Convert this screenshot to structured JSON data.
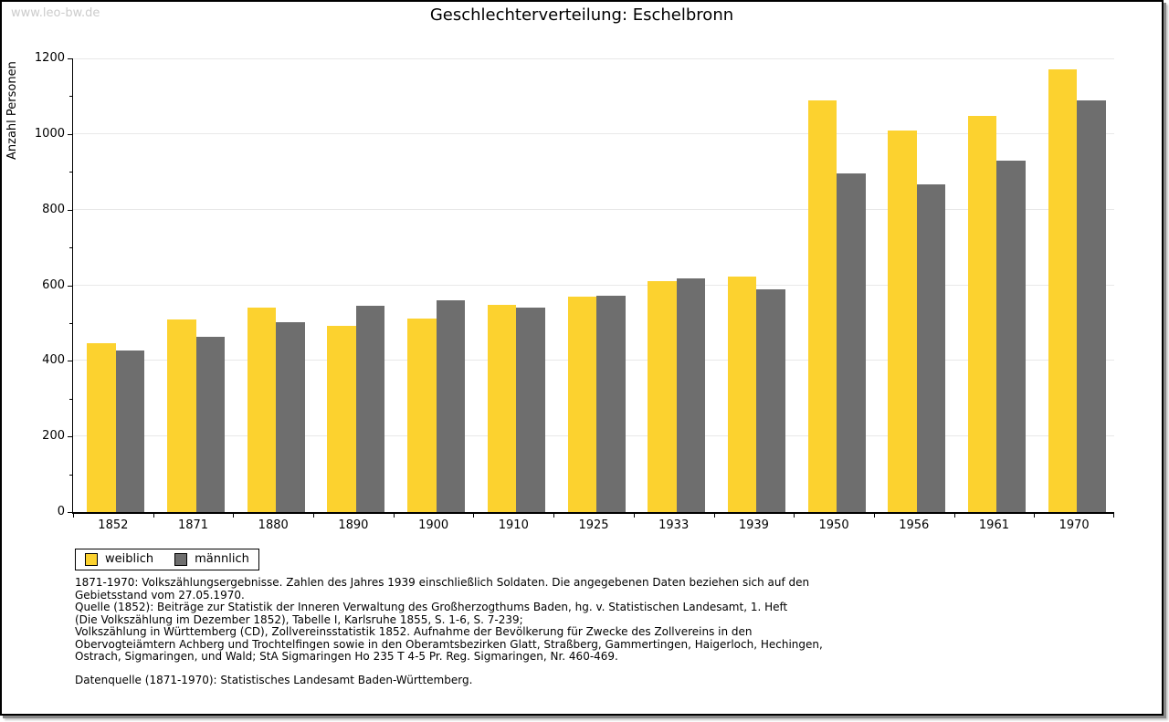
{
  "header": {
    "watermark": "www.leo-bw.de",
    "title": "Geschlechterverteilung: Eschelbronn"
  },
  "chart_data": {
    "type": "bar",
    "title": "Geschlechterverteilung: Eschelbronn",
    "xlabel": "",
    "ylabel": "Anzahl Personen",
    "categories": [
      "1852",
      "1871",
      "1880",
      "1890",
      "1900",
      "1910",
      "1925",
      "1933",
      "1939",
      "1950",
      "1956",
      "1961",
      "1970"
    ],
    "series": [
      {
        "name": "weiblich",
        "color": "#FCD22F",
        "values": [
          447,
          509,
          541,
          492,
          511,
          549,
          570,
          610,
          622,
          1089,
          1010,
          1049,
          1170
        ]
      },
      {
        "name": "männlich",
        "color": "#6E6E6E",
        "values": [
          428,
          463,
          502,
          546,
          561,
          541,
          572,
          617,
          590,
          895,
          867,
          930,
          1090
        ]
      }
    ],
    "ylim": [
      0,
      1200
    ],
    "ytick_major": 200,
    "ytick_minor": 100,
    "grid": true,
    "legend_position": "bottom-left",
    "colors": {
      "axis": "#000000",
      "grid": "#E8E8E8",
      "background": "#FFFFFF",
      "frame": "#000000",
      "watermark": "#CCCCCC",
      "text": "#000000"
    }
  },
  "footnotes": {
    "lines": [
      "1871-1970: Volkszählungsergebnisse. Zahlen des Jahres 1939 einschließlich Soldaten. Die angegebenen Daten beziehen sich auf den",
      "Gebietsstand vom 27.05.1970.",
      "Quelle (1852): Beiträge zur Statistik der Inneren Verwaltung des Großherzogthums Baden, hg. v. Statistischen Landesamt, 1. Heft",
      "(Die Volkszählung im Dezember 1852), Tabelle I, Karlsruhe 1855, S. 1-6, S. 7-239;",
      "Volkszählung in Württemberg (CD), Zollvereinsstatistik 1852. Aufnahme der Bevölkerung für Zwecke des Zollvereins in den",
      "Obervogteiämtern Achberg und Trochtelfingen sowie in den Oberamtsbezirken Glatt, Straßberg, Gammertingen, Haigerloch, Hechingen,",
      "Ostrach, Sigmaringen, und Wald; StA Sigmaringen Ho 235 T 4-5 Pr. Reg. Sigmaringen, Nr. 460-469."
    ],
    "datasource": "Datenquelle (1871-1970): Statistisches Landesamt Baden-Württemberg."
  }
}
